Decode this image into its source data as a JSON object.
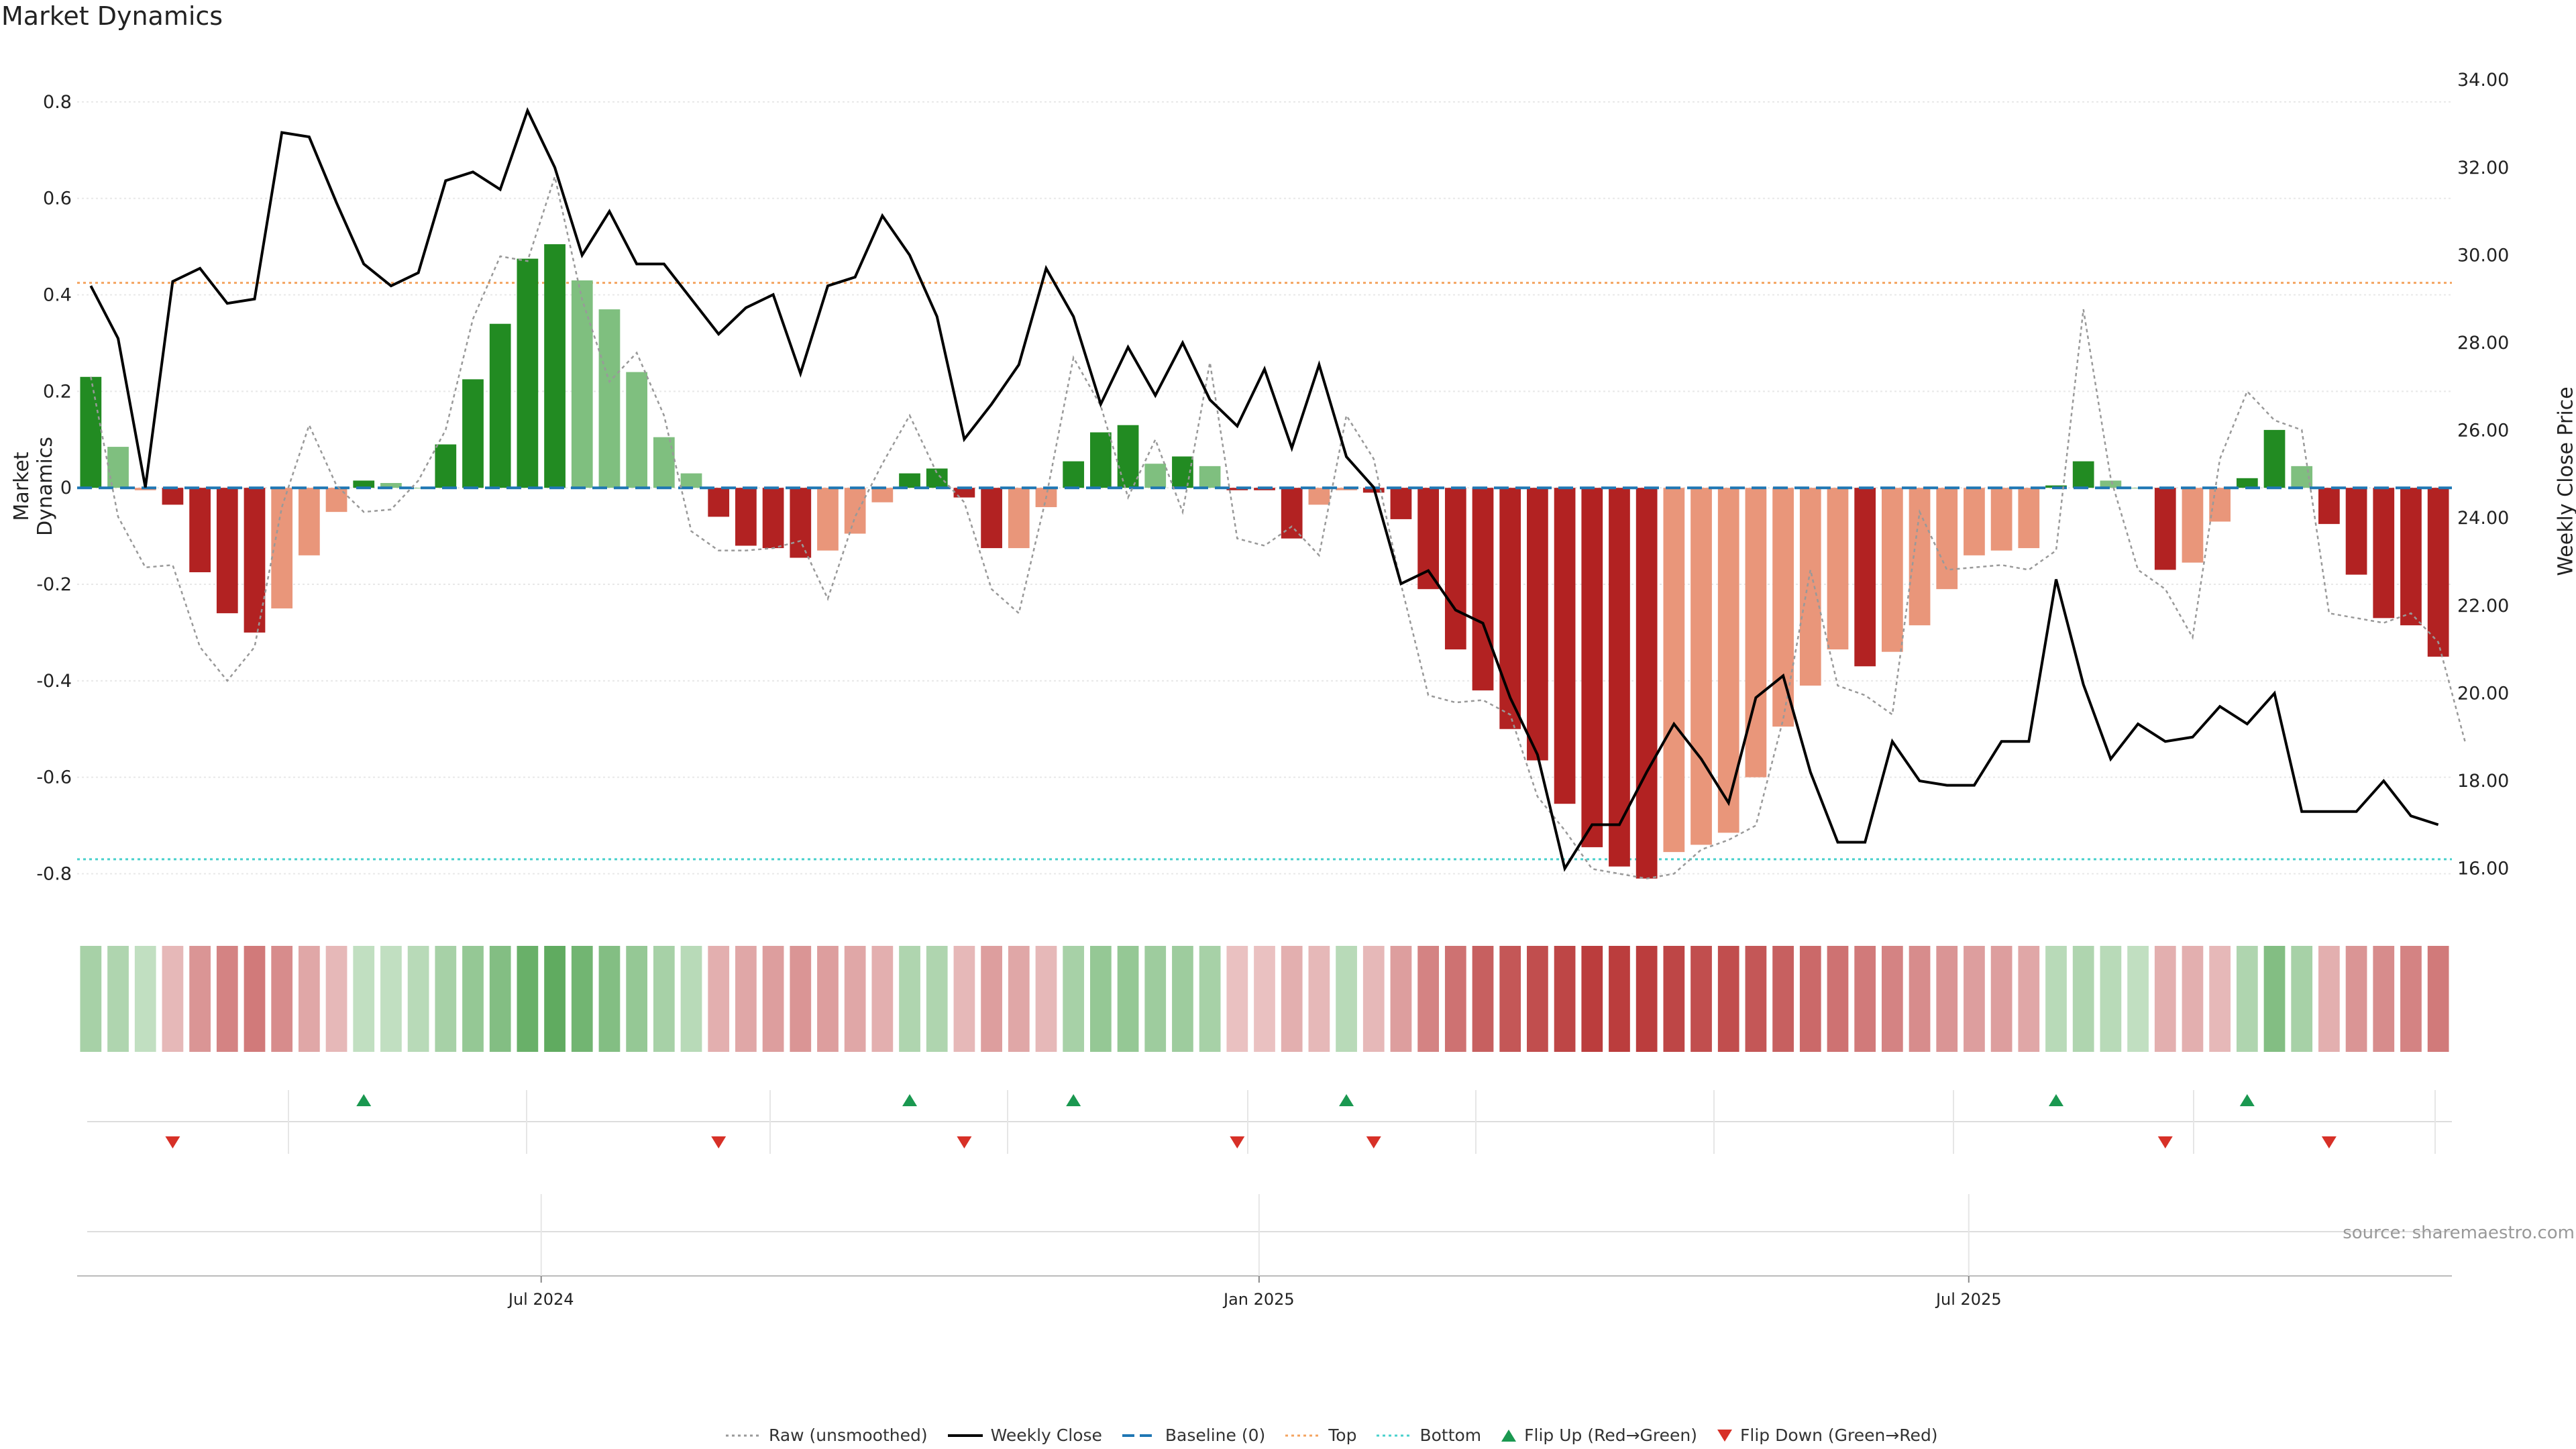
{
  "title": "Market Dynamics",
  "source_note": "source: sharemaestro.com",
  "colors": {
    "strong_green": "#228B22",
    "light_green": "#7FBF7F",
    "strong_red": "#B22222",
    "light_red": "#E9967A",
    "close_line": "#000000",
    "raw_line": "#999999",
    "baseline": "#1f77b4",
    "top": "#F4A460",
    "bottom": "#48D1CC",
    "flip_up": "#1a9850",
    "flip_down": "#d73027"
  },
  "chart_data": {
    "type": "bar",
    "title": "Market Dynamics",
    "ylabel": "Market Dynamics",
    "y2label": "Weekly Close Price",
    "ylim": [
      -0.88,
      0.9
    ],
    "y2lim": [
      15.0,
      34.6
    ],
    "yticks": [
      0.8,
      0.6,
      0.4,
      0.2,
      0,
      -0.2,
      -0.4,
      -0.6,
      -0.8
    ],
    "y2ticks": [
      "34.00",
      "32.00",
      "30.00",
      "28.00",
      "26.00",
      "24.00",
      "22.00",
      "20.00",
      "18.00",
      "16.00"
    ],
    "xtick_labels": [
      {
        "label": "Jul 2024",
        "week": 16.5
      },
      {
        "label": "Jan 2025",
        "week": 42.8
      },
      {
        "label": "Jul 2025",
        "week": 68.8
      }
    ],
    "top_level": 0.425,
    "bottom_level": -0.77,
    "baseline": 0,
    "bars": [
      0.23,
      0.085,
      -0.005,
      -0.035,
      -0.175,
      -0.26,
      -0.3,
      -0.25,
      -0.14,
      -0.05,
      0.015,
      0.01,
      0,
      0.09,
      0.225,
      0.34,
      0.475,
      0.505,
      0.43,
      0.37,
      0.24,
      0.105,
      0.03,
      -0.06,
      -0.12,
      -0.125,
      -0.145,
      -0.13,
      -0.095,
      -0.03,
      0.03,
      0.04,
      -0.02,
      -0.125,
      -0.125,
      -0.04,
      0.055,
      0.115,
      0.13,
      0.05,
      0.065,
      0.045,
      -0.005,
      -0.005,
      -0.105,
      -0.035,
      -0.005,
      -0.01,
      -0.065,
      -0.21,
      -0.335,
      -0.42,
      -0.5,
      -0.565,
      -0.655,
      -0.745,
      -0.785,
      -0.81,
      -0.755,
      -0.74,
      -0.715,
      -0.6,
      -0.495,
      -0.41,
      -0.335,
      -0.37,
      -0.34,
      -0.285,
      -0.21,
      -0.14,
      -0.13,
      -0.125,
      0.005,
      0.055,
      0.015,
      0,
      -0.17,
      -0.155,
      -0.07,
      0.02,
      0.12,
      0.045,
      -0.075,
      -0.18,
      -0.27,
      -0.285,
      -0.35
    ],
    "bar_shades": [
      "strong",
      "light",
      "light",
      "strong",
      "strong",
      "strong",
      "strong",
      "light",
      "light",
      "light",
      "strong",
      "light",
      "light",
      "strong",
      "strong",
      "strong",
      "strong",
      "strong",
      "light",
      "light",
      "light",
      "light",
      "light",
      "strong",
      "strong",
      "strong",
      "strong",
      "light",
      "light",
      "light",
      "strong",
      "strong",
      "strong",
      "strong",
      "light",
      "light",
      "strong",
      "strong",
      "strong",
      "light",
      "strong",
      "light",
      "strong",
      "strong",
      "strong",
      "light",
      "light",
      "strong",
      "strong",
      "strong",
      "strong",
      "strong",
      "strong",
      "strong",
      "strong",
      "strong",
      "strong",
      "strong",
      "light",
      "light",
      "light",
      "light",
      "light",
      "light",
      "light",
      "strong",
      "light",
      "light",
      "light",
      "light",
      "light",
      "light",
      "strong",
      "strong",
      "light",
      "light",
      "strong",
      "light",
      "light",
      "strong",
      "strong",
      "light",
      "strong",
      "strong",
      "strong",
      "strong",
      "strong"
    ],
    "raw": [
      0.23,
      -0.06,
      -0.165,
      -0.16,
      -0.33,
      -0.4,
      -0.33,
      -0.04,
      0.13,
      0.005,
      -0.05,
      -0.045,
      0.015,
      0.12,
      0.35,
      0.48,
      0.47,
      0.645,
      0.39,
      0.22,
      0.28,
      0.15,
      -0.09,
      -0.13,
      -0.13,
      -0.125,
      -0.11,
      -0.23,
      -0.06,
      0.05,
      0.15,
      0.03,
      -0.03,
      -0.21,
      -0.26,
      -0.02,
      0.27,
      0.17,
      -0.02,
      0.1,
      -0.05,
      0.26,
      -0.105,
      -0.12,
      -0.08,
      -0.14,
      0.15,
      0.06,
      -0.2,
      -0.43,
      -0.445,
      -0.44,
      -0.47,
      -0.64,
      -0.71,
      -0.79,
      -0.8,
      -0.81,
      -0.8,
      -0.75,
      -0.73,
      -0.7,
      -0.48,
      -0.17,
      -0.41,
      -0.43,
      -0.47,
      -0.05,
      -0.17,
      -0.165,
      -0.16,
      -0.17,
      -0.13,
      0.37,
      0.02,
      -0.17,
      -0.21,
      -0.31,
      0.06,
      0.2,
      0.14,
      0.12,
      -0.26,
      -0.27,
      -0.28,
      -0.26,
      -0.32,
      -0.53
    ],
    "close": [
      29.3,
      28.1,
      24.7,
      29.4,
      29.7,
      28.9,
      29.0,
      32.8,
      32.7,
      31.2,
      29.8,
      29.3,
      29.6,
      31.7,
      31.9,
      31.5,
      33.3,
      32.0,
      30.0,
      31.0,
      29.8,
      29.8,
      29.0,
      28.2,
      28.8,
      29.1,
      27.3,
      29.3,
      29.5,
      30.9,
      30.0,
      28.6,
      25.8,
      26.6,
      27.5,
      29.7,
      28.6,
      26.6,
      27.9,
      26.8,
      28.0,
      26.7,
      26.1,
      27.4,
      25.6,
      27.5,
      25.4,
      24.7,
      22.5,
      22.8,
      21.9,
      21.6,
      19.9,
      18.6,
      16.0,
      17.0,
      17.0,
      18.2,
      19.3,
      18.5,
      17.5,
      19.9,
      20.4,
      18.2,
      16.6,
      16.6,
      18.9,
      18.0,
      17.9,
      17.9,
      18.9,
      18.9,
      22.6,
      20.2,
      18.5,
      19.3,
      18.9,
      19.0,
      19.7,
      19.3,
      20.0,
      17.3,
      17.3,
      17.3,
      18.0,
      17.2,
      17.0
    ],
    "heat_strip": [
      0.35,
      0.3,
      0.2,
      -0.25,
      -0.45,
      -0.55,
      -0.6,
      -0.5,
      -0.35,
      -0.25,
      0.2,
      0.2,
      0.25,
      0.35,
      0.45,
      0.55,
      0.7,
      0.75,
      0.65,
      0.55,
      0.45,
      0.35,
      0.25,
      -0.3,
      -0.35,
      -0.4,
      -0.45,
      -0.4,
      -0.35,
      -0.3,
      0.3,
      0.3,
      -0.25,
      -0.4,
      -0.35,
      -0.25,
      0.35,
      0.45,
      0.45,
      0.4,
      0.4,
      0.35,
      -0.2,
      -0.2,
      -0.3,
      -0.25,
      0.25,
      -0.25,
      -0.4,
      -0.55,
      -0.65,
      -0.75,
      -0.8,
      -0.85,
      -0.9,
      -0.95,
      -0.95,
      -0.95,
      -0.9,
      -0.85,
      -0.85,
      -0.8,
      -0.75,
      -0.7,
      -0.65,
      -0.6,
      -0.55,
      -0.5,
      -0.45,
      -0.4,
      -0.4,
      -0.35,
      0.25,
      0.3,
      0.25,
      0.2,
      -0.3,
      -0.3,
      -0.25,
      0.3,
      0.55,
      0.35,
      -0.3,
      -0.45,
      -0.5,
      -0.55,
      -0.6
    ],
    "flip_up_weeks": [
      10,
      30,
      36,
      46,
      72,
      79
    ],
    "flip_down_weeks": [
      3,
      23,
      32,
      42,
      47,
      76,
      82
    ],
    "legend": [
      {
        "label": "Raw (unsmoothed)",
        "icon": "dotted-gray-line"
      },
      {
        "label": "Weekly Close",
        "icon": "solid-black-line"
      },
      {
        "label": "Baseline (0)",
        "icon": "dashed-blue-line"
      },
      {
        "label": "Top",
        "icon": "dotted-orange-line"
      },
      {
        "label": "Bottom",
        "icon": "dotted-cyan-line"
      },
      {
        "label": "Flip Up (Red→Green)",
        "icon": "green-triangle-up"
      },
      {
        "label": "Flip Down (Green→Red)",
        "icon": "red-triangle-down"
      }
    ]
  }
}
